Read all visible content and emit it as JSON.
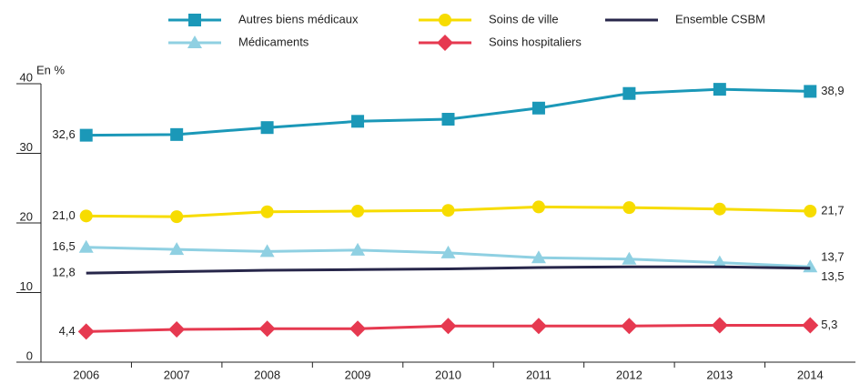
{
  "chart_data": {
    "type": "line",
    "y_label": "En %",
    "categories": [
      "2006",
      "2007",
      "2008",
      "2009",
      "2010",
      "2011",
      "2012",
      "2013",
      "2014"
    ],
    "ylim": [
      0,
      40
    ],
    "yticks": [
      0,
      10,
      20,
      30,
      40
    ],
    "series": [
      {
        "name": "Autres biens médicaux",
        "color": "#1b98b8",
        "marker": "square",
        "values": [
          32.6,
          32.7,
          33.7,
          34.6,
          34.9,
          36.5,
          38.6,
          39.2,
          38.9
        ],
        "value_labels": [
          "32,6",
          null,
          null,
          null,
          null,
          null,
          null,
          null,
          "38,9"
        ]
      },
      {
        "name": "Médicaments",
        "color": "#8fd0e2",
        "marker": "triangle",
        "values": [
          16.5,
          16.2,
          15.9,
          16.1,
          15.7,
          15.0,
          14.8,
          14.3,
          13.7
        ],
        "value_labels": [
          "16,5",
          null,
          null,
          null,
          null,
          null,
          null,
          null,
          "13,7"
        ]
      },
      {
        "name": "Soins de ville",
        "color": "#f7dc00",
        "marker": "circle",
        "values": [
          21.0,
          20.9,
          21.6,
          21.7,
          21.8,
          22.3,
          22.2,
          22.0,
          21.7
        ],
        "value_labels": [
          "21,0",
          null,
          null,
          null,
          null,
          null,
          null,
          null,
          "21,7"
        ]
      },
      {
        "name": "Soins hospitaliers",
        "color": "#e63950",
        "marker": "diamond",
        "values": [
          4.4,
          4.7,
          4.8,
          4.8,
          5.2,
          5.2,
          5.2,
          5.3,
          5.3
        ],
        "value_labels": [
          "4,4",
          null,
          null,
          null,
          null,
          null,
          null,
          null,
          "5,3"
        ]
      },
      {
        "name": "Ensemble CSBM",
        "color": "#27264a",
        "marker": "none",
        "values": [
          12.8,
          13.0,
          13.2,
          13.3,
          13.4,
          13.6,
          13.7,
          13.7,
          13.5
        ],
        "value_labels": [
          "12,8",
          null,
          null,
          null,
          null,
          null,
          null,
          null,
          "13,5"
        ]
      }
    ]
  }
}
